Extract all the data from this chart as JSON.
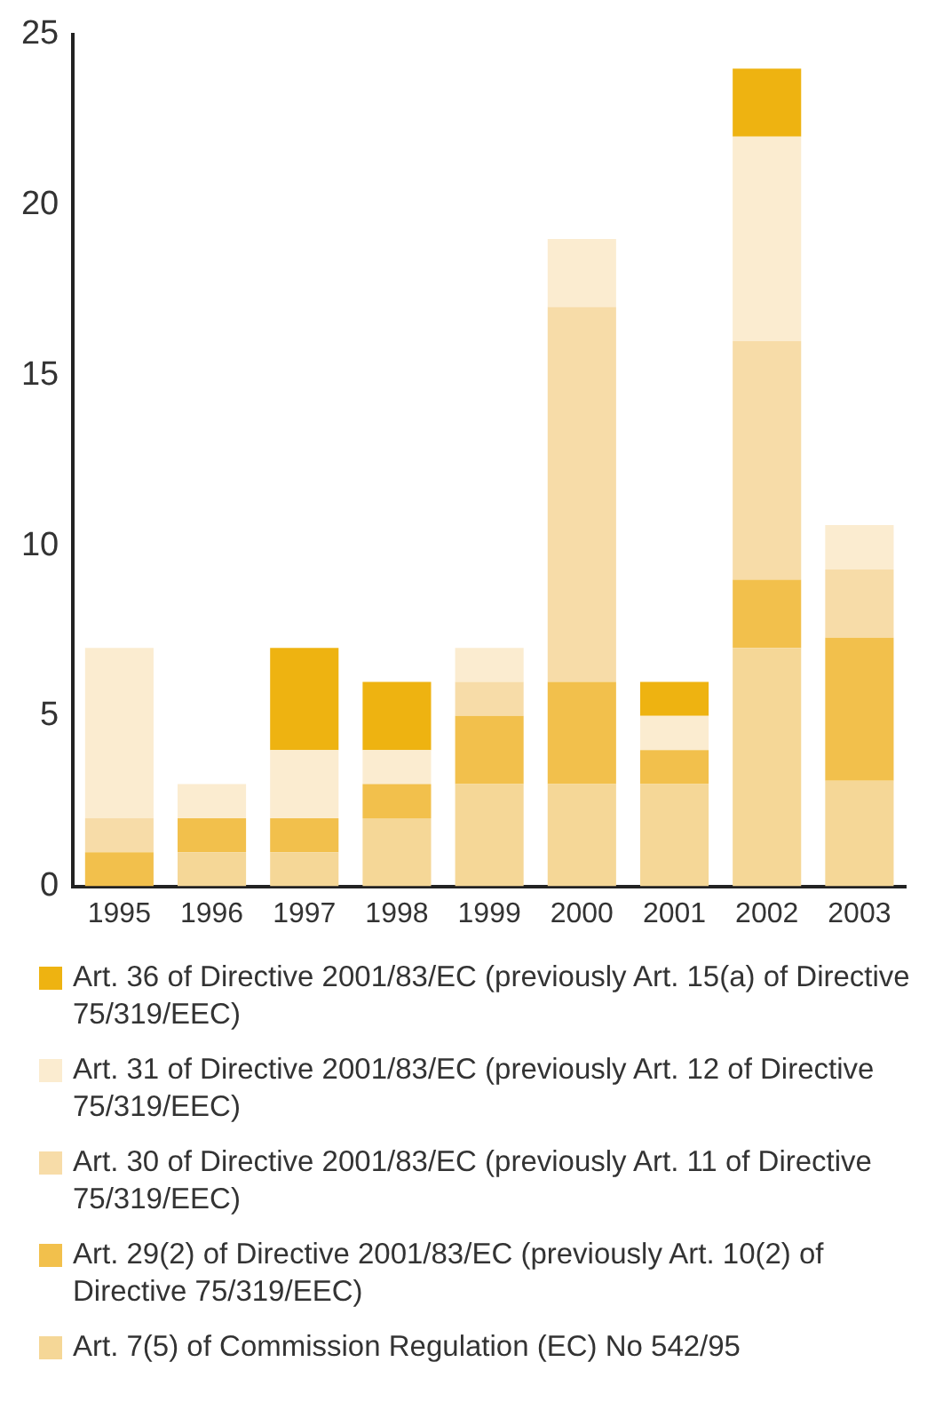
{
  "chart_data": {
    "type": "bar",
    "stacked": true,
    "categories": [
      "1995",
      "1996",
      "1997",
      "1998",
      "1999",
      "2000",
      "2001",
      "2002",
      "2003"
    ],
    "series": [
      {
        "name": "Art. 7(5) of Commission Regulation (EC) No 542/95",
        "color": "#f5d797",
        "values": [
          0,
          1,
          1,
          2,
          3,
          3,
          3,
          7,
          3.1
        ]
      },
      {
        "name": "Art. 29(2) of Directive 2001/83/EC (previously Art. 10(2) of Directive 75/319/EEC)",
        "color": "#f2c04c",
        "values": [
          1,
          1,
          1,
          1,
          2,
          3,
          1,
          2,
          4.2
        ]
      },
      {
        "name": "Art. 30 of Directive 2001/83/EC (previously Art. 11 of Directive 75/319/EEC)",
        "color": "#f7dca8",
        "values": [
          1,
          0,
          0,
          0,
          1,
          11,
          0,
          7,
          2
        ]
      },
      {
        "name": "Art. 31 of Directive 2001/83/EC (previously Art. 12 of Directive 75/319/EEC)",
        "color": "#fbecd0",
        "values": [
          5,
          1,
          2,
          1,
          1,
          2,
          1,
          6,
          1.3
        ]
      },
      {
        "name": "Art. 36 of Directive 2001/83/EC (previously Art. 15(a) of Directive 75/319/EEC)",
        "color": "#eeb311",
        "values": [
          0,
          0,
          3,
          2,
          0,
          0,
          1,
          2,
          0
        ]
      }
    ],
    "ylim": [
      0,
      25
    ],
    "yticks": [
      0,
      5,
      10,
      15,
      20,
      25
    ],
    "grid": false,
    "legend": "bottom"
  }
}
